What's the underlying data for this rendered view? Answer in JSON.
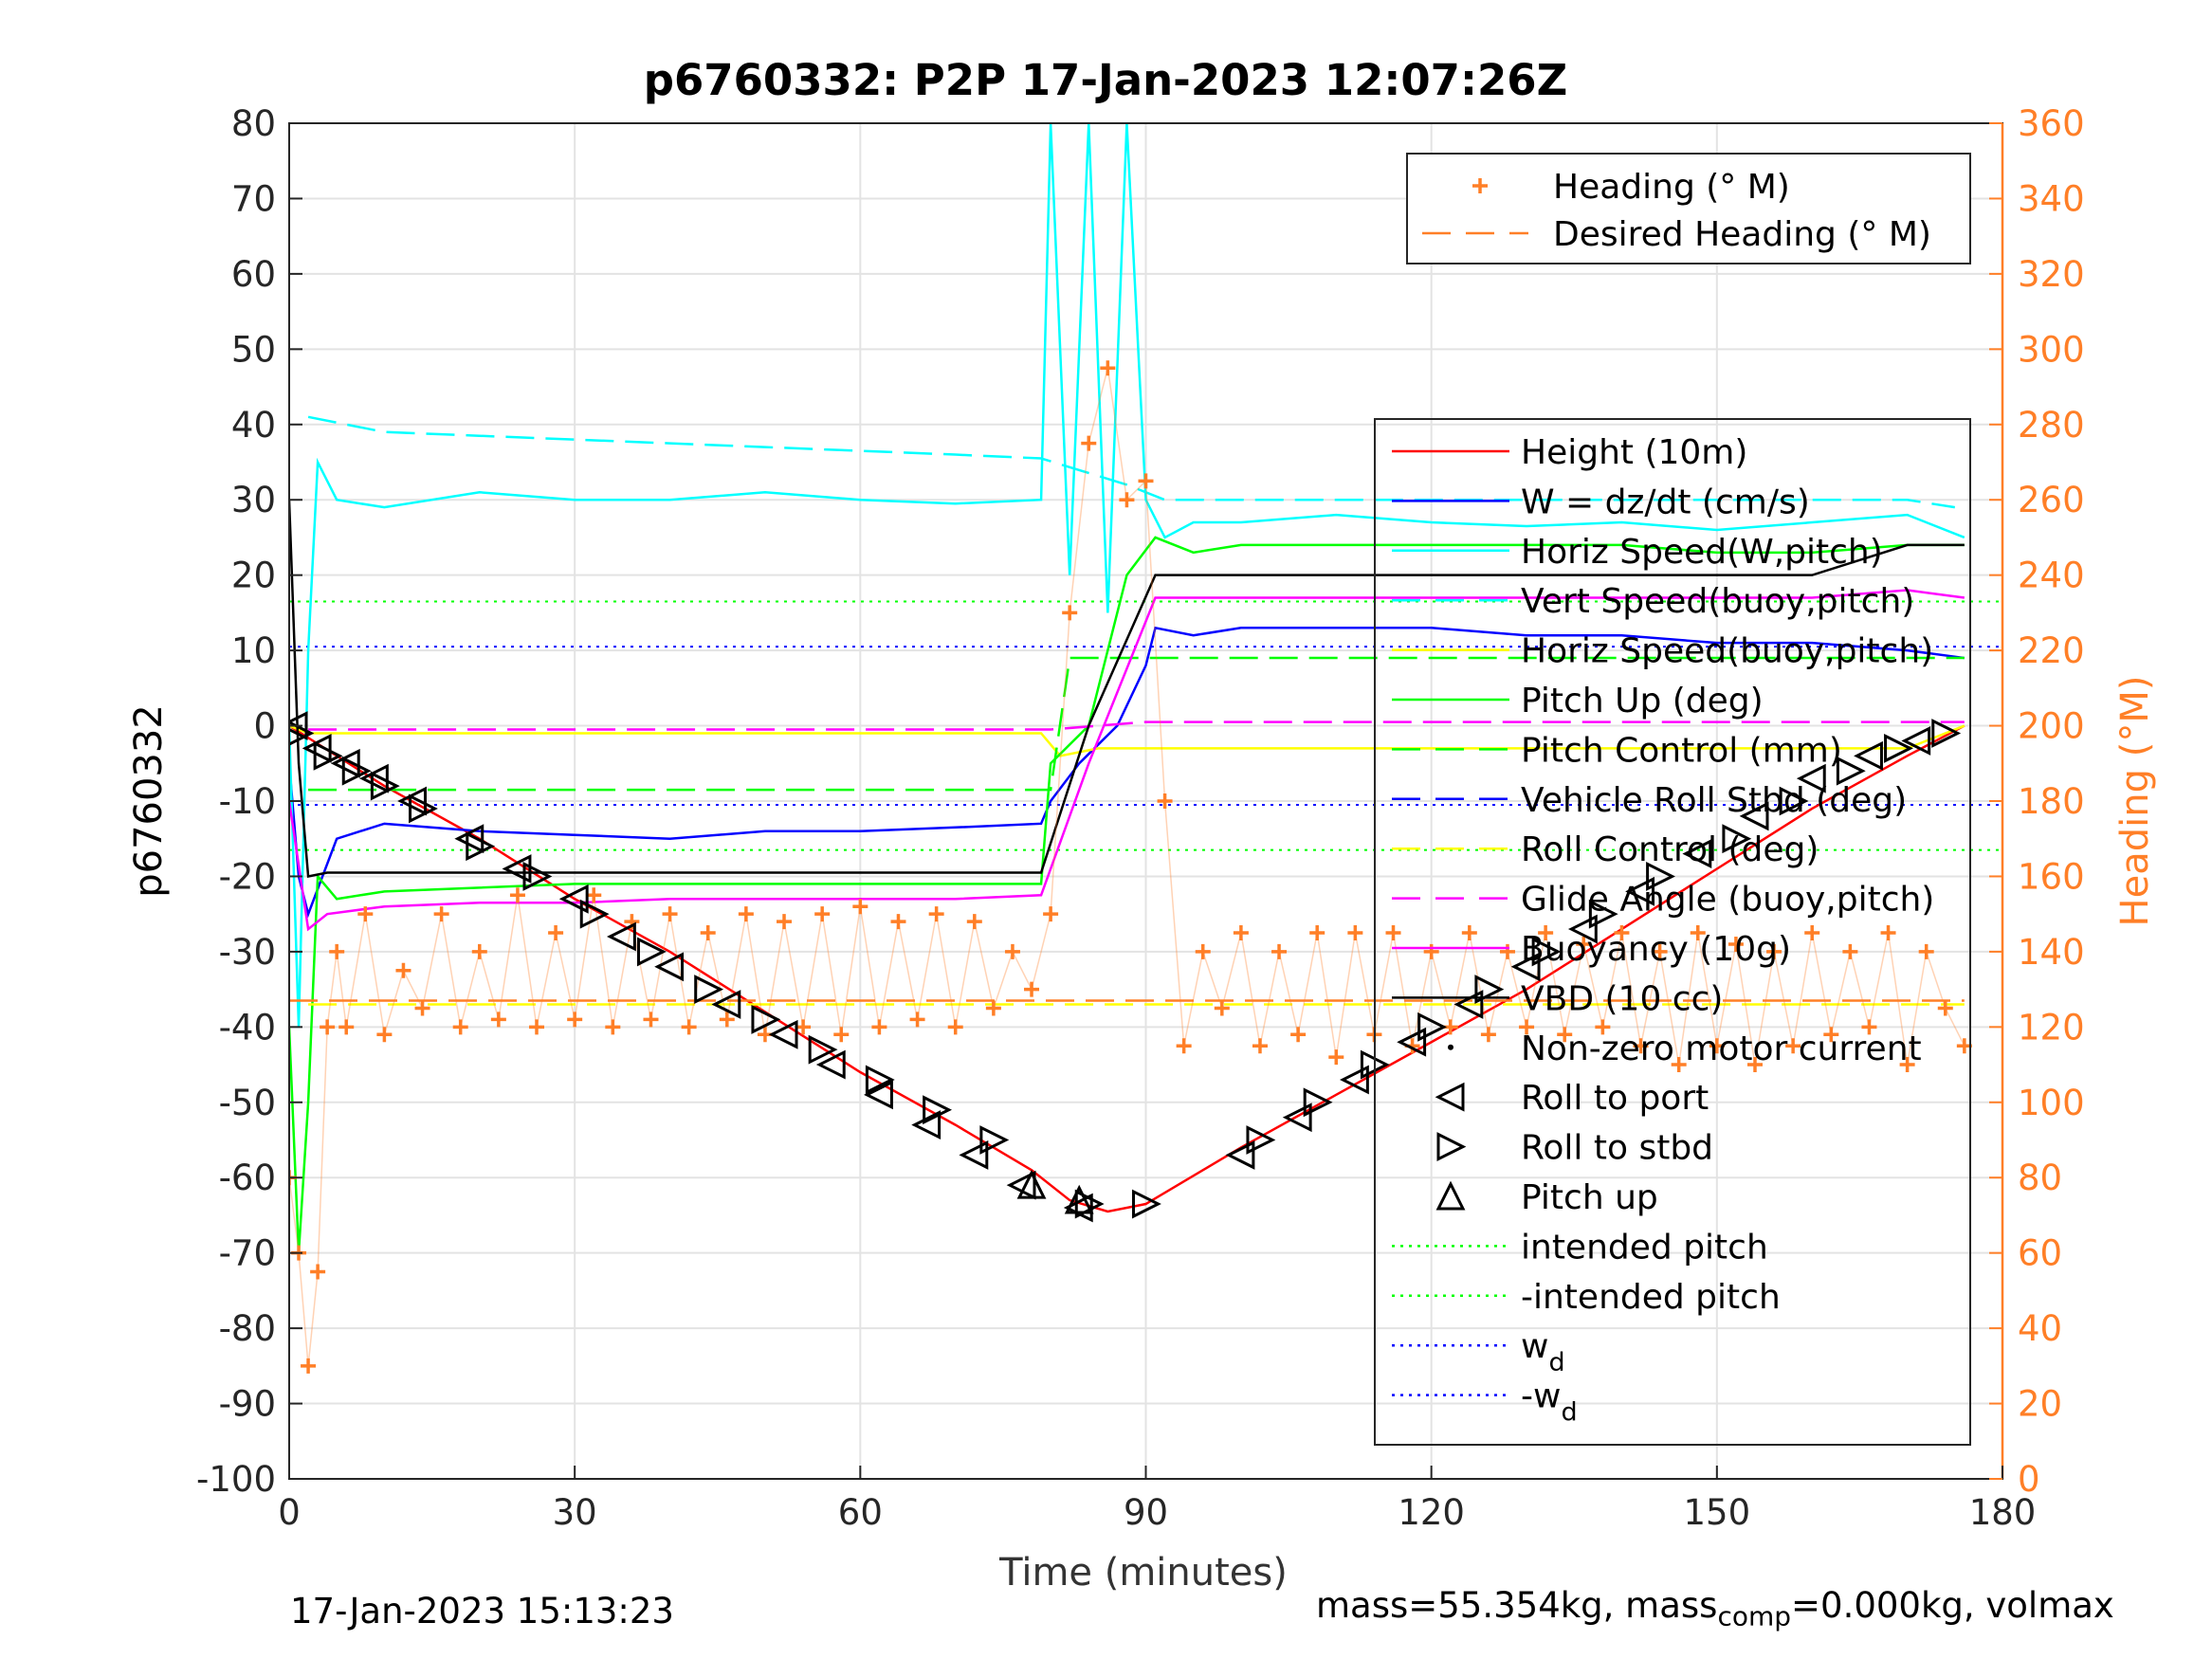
{
  "chart_data": {
    "type": "line",
    "title": "p6760332: P2P 17-Jan-2023 12:07:26Z",
    "xlabel": "Time (minutes)",
    "ylabel": "p6760332",
    "y2label": "Heading (°M)",
    "xlim": [
      0,
      180
    ],
    "ylim": [
      -100,
      80
    ],
    "y2lim": [
      0,
      360
    ],
    "xticks": [
      "0",
      "30",
      "60",
      "90",
      "120",
      "150",
      "180"
    ],
    "yticks": [
      "80",
      "70",
      "60",
      "50",
      "40",
      "30",
      "20",
      "10",
      "0",
      "-10",
      "-20",
      "-30",
      "-40",
      "-50",
      "-60",
      "-70",
      "-80",
      "-90",
      "-100"
    ],
    "y2ticks": [
      "360",
      "340",
      "320",
      "300",
      "280",
      "260",
      "240",
      "220",
      "200",
      "180",
      "160",
      "140",
      "120",
      "100",
      "80",
      "60",
      "40",
      "20",
      "0"
    ],
    "grid": true,
    "legend_top": [
      {
        "label": "Heading (° M)",
        "color": "#ff7f27",
        "style": "plus"
      },
      {
        "label": "Desired Heading (° M)",
        "color": "#ff7f27",
        "style": "dashed"
      }
    ],
    "legend_main": [
      {
        "label": "Height (10m)",
        "color": "#ff0000",
        "style": "solid"
      },
      {
        "label": "W = dz/dt (cm/s)",
        "color": "#0000ff",
        "style": "solid"
      },
      {
        "label": "Horiz Speed(W,pitch)",
        "color": "#00ffff",
        "style": "solid"
      },
      {
        "label": "Vert Speed(buoy,pitch)",
        "color": "#00ffff",
        "style": "dashed"
      },
      {
        "label": "Horiz Speed(buoy,pitch)",
        "color": "#ffff00",
        "style": "solid"
      },
      {
        "label": "Pitch Up (deg)",
        "color": "#00ff00",
        "style": "solid"
      },
      {
        "label": "Pitch Control (mm)",
        "color": "#00ff00",
        "style": "dashed"
      },
      {
        "label": "Vehicle Roll Stbd (deg)",
        "color": "#0000ff",
        "style": "dashed"
      },
      {
        "label": "Roll Control (deg)",
        "color": "#ffff00",
        "style": "dashed"
      },
      {
        "label": "Glide Angle (buoy,pitch)",
        "color": "#ff00ff",
        "style": "dashed"
      },
      {
        "label": "Buoyancy (10g)",
        "color": "#ff00ff",
        "style": "solid"
      },
      {
        "label": "VBD (10 cc)",
        "color": "#000000",
        "style": "solid"
      },
      {
        "label": "Non-zero motor current",
        "color": "#000000",
        "style": "dot"
      },
      {
        "label": "Roll to port",
        "color": "#000000",
        "style": "tri-left"
      },
      {
        "label": "Roll to stbd",
        "color": "#000000",
        "style": "tri-right"
      },
      {
        "label": "Pitch up",
        "color": "#000000",
        "style": "tri-up"
      },
      {
        "label": "intended pitch",
        "color": "#00ff00",
        "style": "dotted"
      },
      {
        "label": "-intended pitch",
        "color": "#00ff00",
        "style": "dotted"
      },
      {
        "label": "w",
        "sub": "d",
        "color": "#0000ff",
        "style": "dotted"
      },
      {
        "label": "-w",
        "sub": "d",
        "color": "#0000ff",
        "style": "dotted"
      }
    ],
    "reference_lines": {
      "intended_pitch": 16.5,
      "neg_intended_pitch": -16.5,
      "w_d": 10.5,
      "neg_w_d": -10.5
    },
    "series": [
      {
        "name": "Height (10m)",
        "color": "#ff0000",
        "x": [
          0,
          10,
          20,
          30,
          40,
          50,
          60,
          70,
          78,
          82,
          86,
          90,
          100,
          110,
          120,
          130,
          140,
          150,
          160,
          170,
          176
        ],
        "y": [
          0,
          -8,
          -15,
          -23,
          -30,
          -38,
          -46,
          -53,
          -59,
          -63,
          -64.5,
          -63.5,
          -56,
          -49,
          -42,
          -35,
          -27,
          -19,
          -11,
          -4,
          0
        ]
      },
      {
        "name": "W = dz/dt (cm/s)",
        "color": "#0000ff",
        "x": [
          0,
          1,
          2,
          5,
          10,
          20,
          30,
          40,
          50,
          60,
          70,
          79,
          80,
          83,
          87,
          90,
          91,
          95,
          100,
          110,
          120,
          130,
          140,
          150,
          160,
          170,
          176
        ],
        "y": [
          -5,
          -20,
          -25,
          -15,
          -13,
          -14,
          -14.5,
          -15,
          -14,
          -14,
          -13.5,
          -13,
          -10,
          -5,
          0,
          8,
          13,
          12,
          13,
          13,
          13,
          12,
          12,
          11,
          11,
          10,
          9
        ]
      },
      {
        "name": "Horiz Speed(W,pitch)",
        "color": "#00ffff",
        "x": [
          0,
          1,
          2,
          3,
          5,
          10,
          20,
          30,
          40,
          50,
          60,
          70,
          79,
          80,
          82,
          84,
          86,
          88,
          90,
          92,
          95,
          100,
          110,
          120,
          130,
          140,
          150,
          160,
          170,
          176
        ],
        "y": [
          0,
          -40,
          10,
          35,
          30,
          29,
          31,
          30,
          30,
          31,
          30,
          29.5,
          30,
          80,
          20,
          80,
          15,
          80,
          30,
          25,
          27,
          27,
          28,
          27,
          26.5,
          27,
          26,
          27,
          28,
          25
        ]
      },
      {
        "name": "Vert Speed(buoy,pitch)",
        "color": "#00ffff",
        "dashed": true,
        "x": [
          2,
          10,
          20,
          30,
          40,
          50,
          60,
          70,
          79,
          88,
          92,
          100,
          110,
          120,
          130,
          140,
          150,
          160,
          170,
          175
        ],
        "y": [
          41,
          39,
          38.5,
          38,
          37.5,
          37,
          36.5,
          36,
          35.5,
          32,
          30,
          30,
          30,
          30,
          30,
          30,
          30,
          30,
          30,
          29
        ]
      },
      {
        "name": "Horiz Speed(buoy,pitch)",
        "color": "#ffff00",
        "x": [
          0,
          2,
          5,
          10,
          20,
          30,
          40,
          50,
          60,
          70,
          79,
          81,
          85,
          90,
          92,
          100,
          110,
          120,
          130,
          140,
          150,
          160,
          170,
          176
        ],
        "y": [
          0,
          -1,
          -1,
          -1,
          -1,
          -1,
          -1,
          -1,
          -1,
          -1,
          -1,
          -4,
          -3,
          -3,
          -3,
          -3,
          -3,
          -3,
          -3,
          -3,
          -3,
          -3,
          -3,
          0
        ]
      },
      {
        "name": "Pitch Up (deg)",
        "color": "#00ff00",
        "x": [
          0,
          1,
          2,
          3,
          5,
          10,
          20,
          30,
          40,
          50,
          60,
          70,
          79,
          80,
          84,
          86,
          88,
          91,
          95,
          100,
          110,
          120,
          130,
          140,
          150,
          160,
          170,
          176
        ],
        "y": [
          -40,
          -70,
          -50,
          -20,
          -23,
          -22,
          -21.5,
          -21,
          -21,
          -21,
          -21,
          -21,
          -21,
          -5,
          0,
          10,
          20,
          25,
          23,
          24,
          24,
          24,
          24,
          24,
          23,
          23,
          24,
          24
        ]
      },
      {
        "name": "Pitch Control (mm)",
        "color": "#00ff00",
        "dashed": true,
        "x": [
          2,
          80,
          82,
          90,
          176
        ],
        "y": [
          -8.5,
          -8.5,
          9,
          9,
          9
        ]
      },
      {
        "name": "Roll Control (deg)",
        "color": "#ffff00",
        "dashed": true,
        "x": [
          2,
          82,
          92,
          176
        ],
        "y": [
          -37,
          -37,
          -37,
          -37
        ]
      },
      {
        "name": "Glide Angle (buoy,pitch)",
        "color": "#ff00ff",
        "dashed": true,
        "x": [
          2,
          80,
          90,
          176
        ],
        "y": [
          -0.5,
          -0.5,
          0.5,
          0.5
        ]
      },
      {
        "name": "Buoyancy (10g)",
        "color": "#ff00ff",
        "x": [
          0,
          2,
          4,
          10,
          20,
          30,
          40,
          50,
          60,
          70,
          79,
          84,
          91,
          100,
          110,
          120,
          130,
          140,
          150,
          160,
          170,
          176
        ],
        "y": [
          -10,
          -27,
          -25,
          -24,
          -23.5,
          -23.5,
          -23,
          -23,
          -23,
          -23,
          -22.5,
          -5,
          17,
          17,
          17,
          17,
          17,
          17,
          17,
          17,
          18,
          17
        ]
      },
      {
        "name": "VBD (10 cc)",
        "color": "#000000",
        "x": [
          0,
          1,
          2,
          4,
          10,
          20,
          40,
          60,
          79,
          84,
          91,
          100,
          120,
          140,
          160,
          165,
          170,
          176
        ],
        "y": [
          30,
          -5,
          -20,
          -19.5,
          -19.5,
          -19.5,
          -19.5,
          -19.5,
          -19.5,
          0,
          20,
          20,
          20,
          20,
          20,
          22,
          24,
          24
        ]
      },
      {
        "name": "Heading (° M)",
        "color": "#ff7f27",
        "axis": "right",
        "x": [
          0,
          1,
          2,
          3,
          4,
          5,
          6,
          8,
          10,
          12,
          14,
          16,
          18,
          20,
          22,
          24,
          26,
          28,
          30,
          32,
          34,
          36,
          38,
          40,
          42,
          44,
          46,
          48,
          50,
          52,
          54,
          56,
          58,
          60,
          62,
          64,
          66,
          68,
          70,
          72,
          74,
          76,
          78,
          80,
          82,
          84,
          86,
          88,
          90,
          92,
          94,
          96,
          98,
          100,
          102,
          104,
          106,
          108,
          110,
          112,
          114,
          116,
          118,
          120,
          122,
          124,
          126,
          128,
          130,
          132,
          134,
          136,
          138,
          140,
          142,
          144,
          146,
          148,
          150,
          152,
          154,
          156,
          158,
          160,
          162,
          164,
          166,
          168,
          170,
          172,
          174,
          176
        ],
        "y": [
          80,
          60,
          30,
          55,
          120,
          140,
          120,
          150,
          118,
          135,
          125,
          150,
          120,
          140,
          122,
          155,
          120,
          145,
          122,
          155,
          120,
          148,
          122,
          150,
          120,
          145,
          122,
          150,
          118,
          148,
          120,
          150,
          118,
          152,
          120,
          148,
          122,
          150,
          120,
          148,
          125,
          140,
          130,
          150,
          230,
          275,
          295,
          260,
          265,
          180,
          115,
          140,
          125,
          145,
          115,
          140,
          118,
          145,
          112,
          145,
          118,
          145,
          115,
          140,
          120,
          145,
          118,
          140,
          120,
          145,
          118,
          142,
          120,
          145,
          115,
          140,
          110,
          145,
          115,
          142,
          110,
          140,
          115,
          145,
          118,
          140,
          120,
          145,
          110,
          140,
          125,
          115
        ]
      },
      {
        "name": "Desired Heading (° M)",
        "color": "#ff7f27",
        "axis": "right",
        "dashed": true,
        "x": [
          0,
          80,
          82,
          176
        ],
        "y": [
          127,
          127,
          127,
          127
        ]
      }
    ],
    "roll_port_markers": {
      "x": [
        0.5,
        3,
        6,
        9,
        13,
        19,
        24,
        30,
        35,
        40,
        46,
        52,
        57,
        62,
        67,
        72,
        77,
        83,
        100,
        106,
        112,
        118,
        124,
        130,
        136,
        142,
        148,
        154,
        160,
        166,
        171
      ],
      "y": [
        0,
        -3,
        -5,
        -7,
        -10,
        -15,
        -19,
        -23,
        -28,
        -32,
        -37,
        -41,
        -45,
        -49,
        -53,
        -57,
        -61,
        -64,
        -57,
        -52,
        -47,
        -42,
        -37,
        -32,
        -27,
        -22,
        -17,
        -12,
        -7,
        -4,
        -2
      ]
    },
    "roll_stbd_markers": {
      "x": [
        1,
        4,
        7,
        10,
        14,
        20,
        26,
        32,
        38,
        44,
        50,
        56,
        62,
        68,
        74,
        84,
        90,
        102,
        108,
        114,
        120,
        126,
        132,
        138,
        144,
        152,
        158,
        164,
        169,
        174
      ],
      "y": [
        -1,
        -4,
        -6,
        -8,
        -11,
        -16,
        -20,
        -25,
        -30,
        -35,
        -39,
        -43,
        -47,
        -51,
        -55,
        -63.5,
        -63.5,
        -55,
        -50,
        -45,
        -40,
        -35,
        -30,
        -25,
        -20,
        -15,
        -10,
        -6,
        -3,
        -1
      ]
    },
    "pitch_up_markers": {
      "x": [
        78,
        83
      ],
      "y": [
        -61,
        -63
      ]
    },
    "footer_left": "17-Jan-2023 15:13:23",
    "footer_right_a": "mass=55.354kg, mass",
    "footer_right_sub": "comp",
    "footer_right_b": "=0.000kg, volmax"
  }
}
